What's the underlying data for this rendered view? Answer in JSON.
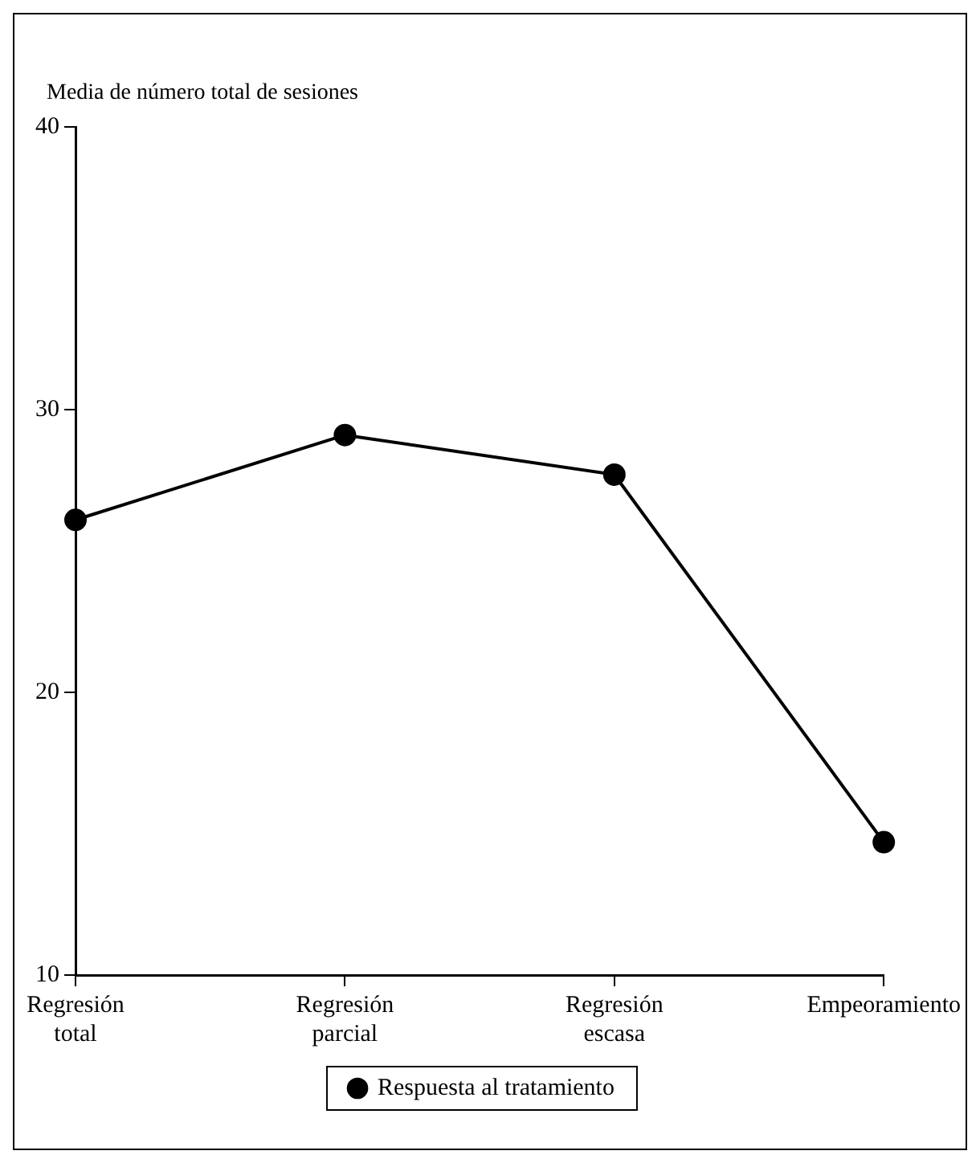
{
  "chart_data": {
    "type": "line",
    "ylabel": "Media de número total de sesiones",
    "categories": [
      "Regresión total",
      "Regresión parcial",
      "Regresión escasa",
      "Empeoramiento"
    ],
    "series": [
      {
        "name": "Respuesta al tratamiento",
        "color": "#000000",
        "values": [
          26.1,
          29.1,
          27.7,
          14.7
        ]
      }
    ],
    "ylim": [
      10,
      40
    ],
    "yticks": [
      10,
      20,
      30,
      40
    ],
    "grid": false,
    "legend": "bottom",
    "marker": "circle",
    "line_style": "solid"
  }
}
